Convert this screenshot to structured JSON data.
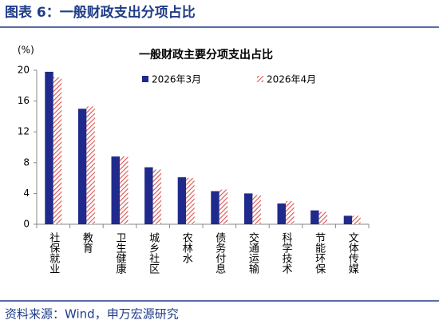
{
  "header": {
    "title": "图表 6：一般财政支出分项占比"
  },
  "chart_data": {
    "type": "bar",
    "title": "一般财政主要分项支出占比",
    "ylabel": "(%)",
    "categories": [
      "社保就业",
      "教育",
      "卫生健康",
      "城乡社区",
      "农林水",
      "债务付息",
      "交通运输",
      "科学技术",
      "节能环保",
      "文体传媒"
    ],
    "series": [
      {
        "name": "2026年3月",
        "color": "#1f2a8c",
        "hatch": false,
        "values": [
          19.8,
          15.0,
          8.8,
          7.4,
          6.1,
          4.3,
          4.0,
          2.7,
          1.8,
          1.1
        ]
      },
      {
        "name": "2026年4月",
        "color": "#d9534f",
        "hatch": true,
        "values": [
          19.1,
          15.3,
          8.8,
          7.1,
          6.0,
          4.5,
          3.8,
          3.0,
          1.6,
          1.1
        ]
      }
    ],
    "ylim": [
      0,
      20
    ],
    "yticks": [
      0,
      4,
      8,
      12,
      16,
      20
    ],
    "grid": false,
    "legend": "top"
  },
  "footer": {
    "source": "资料来源：Wind，申万宏源研究"
  }
}
